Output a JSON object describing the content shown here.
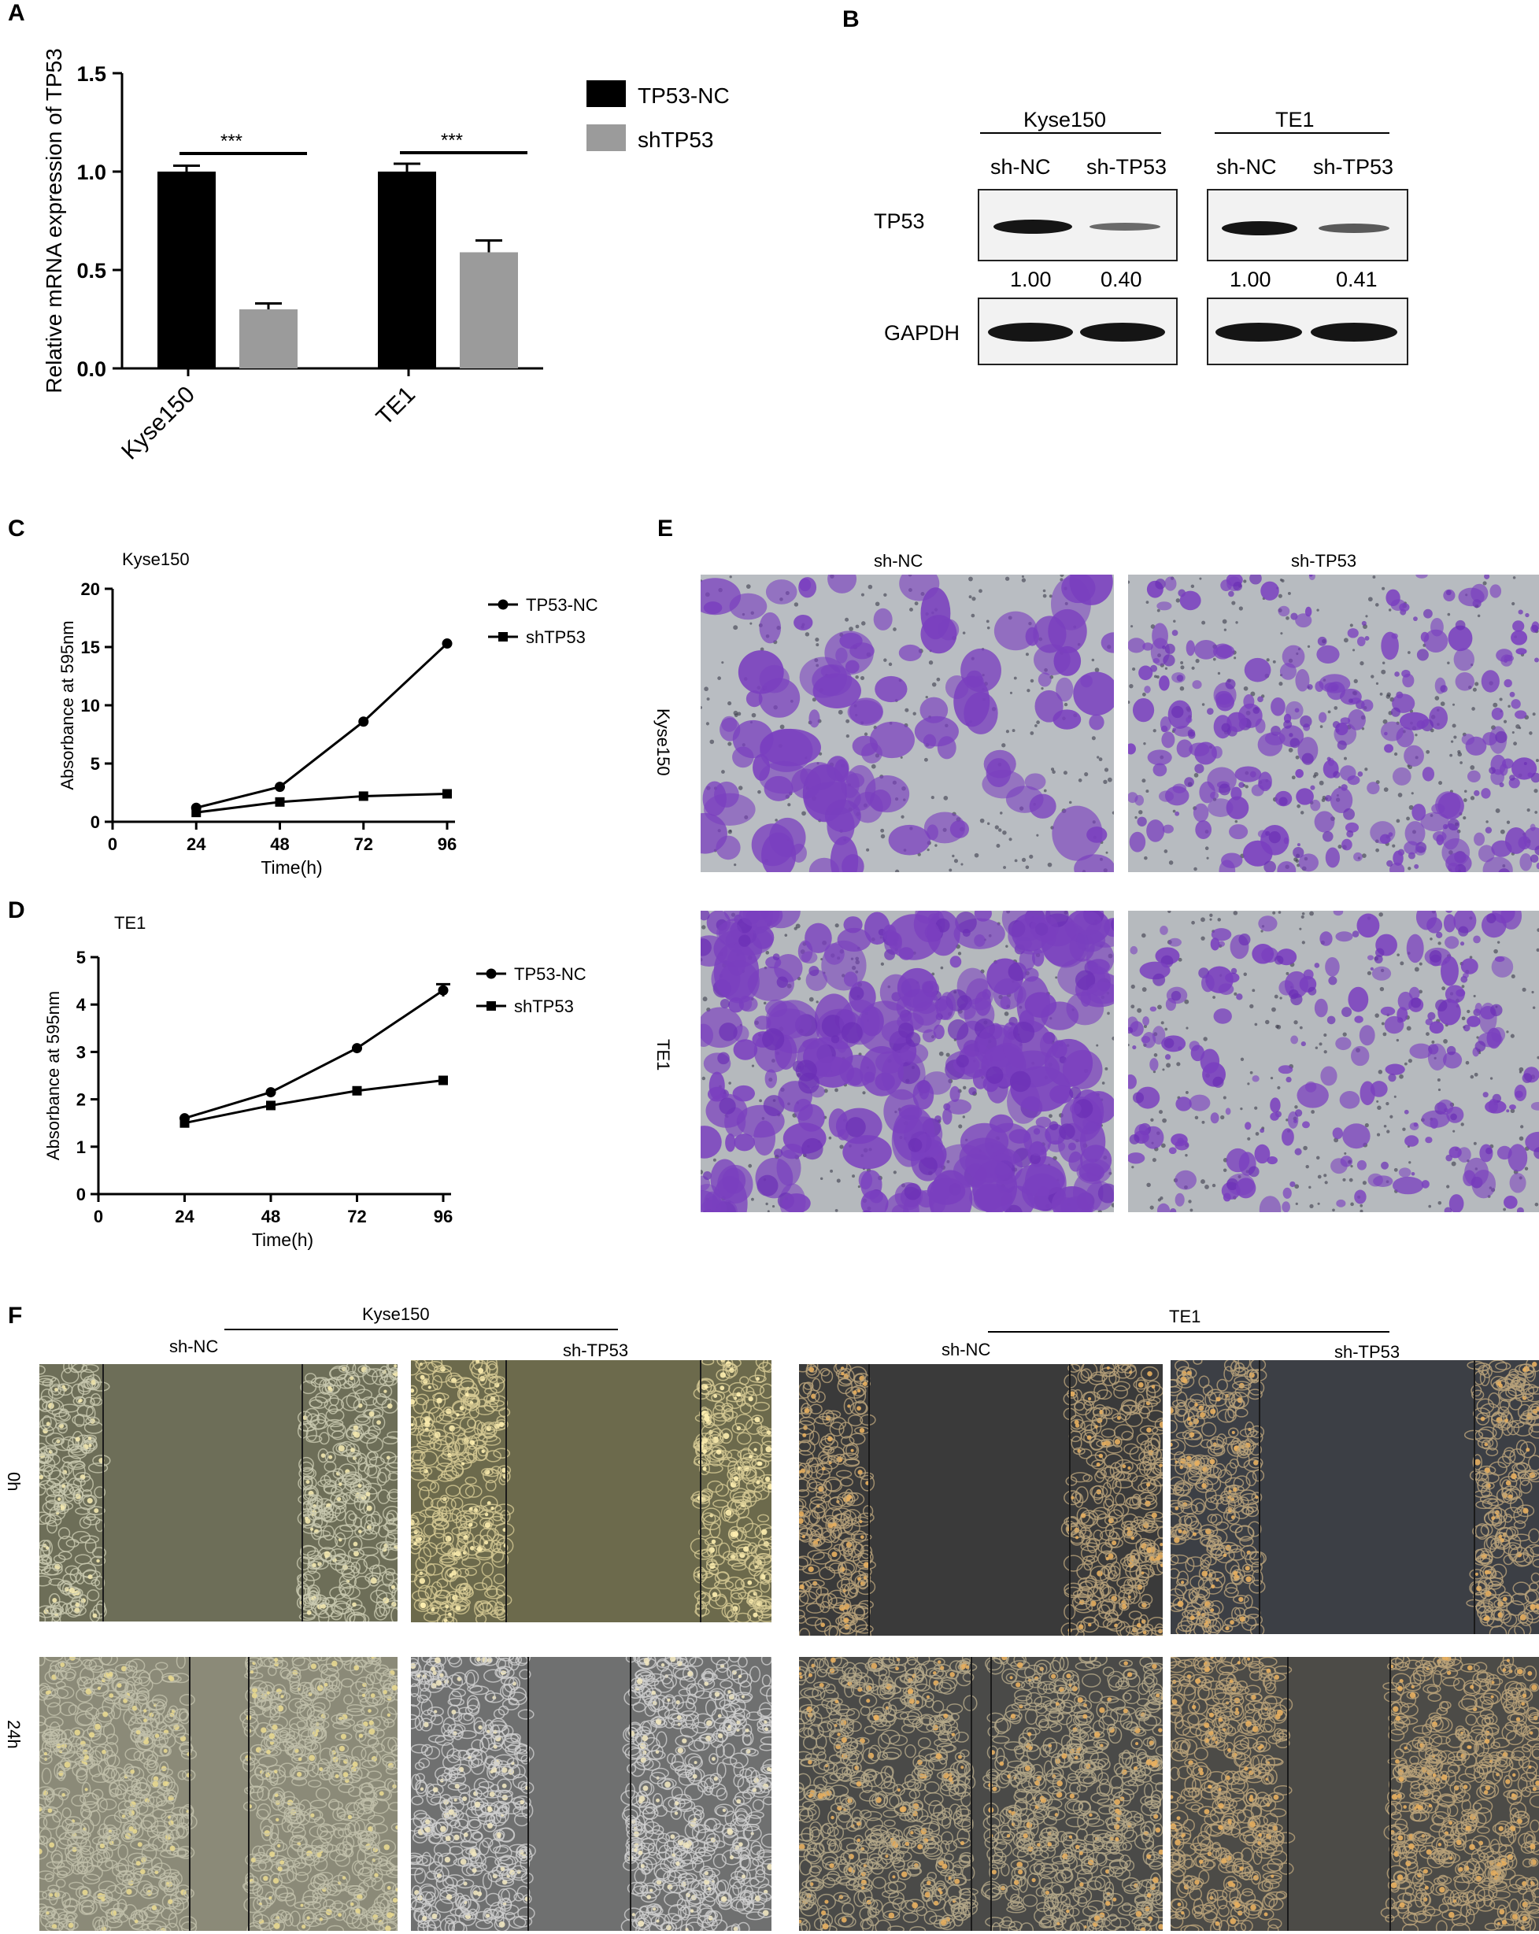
{
  "panel_labels": {
    "A": "A",
    "B": "B",
    "C": "C",
    "D": "D",
    "E": "E",
    "F": "F"
  },
  "colors": {
    "tp53_nc": "#000000",
    "shtp53": "#9b9b9b",
    "crystal_violet": "#7a3fbf",
    "membrane": "#b8bcc0"
  },
  "chart_data": [
    {
      "panel": "A",
      "type": "bar",
      "categories": [
        "Kyse150",
        "TE1"
      ],
      "series": [
        {
          "name": "TP53-NC",
          "values": [
            1.0,
            1.0
          ],
          "errors": [
            0.03,
            0.04
          ]
        },
        {
          "name": "shTP53",
          "values": [
            0.3,
            0.59
          ],
          "errors": [
            0.03,
            0.06
          ]
        }
      ],
      "significance": [
        "***",
        "***"
      ],
      "ylabel": "Relative mRNA expression of TP53",
      "ylim": [
        0,
        1.5
      ],
      "yticks": [
        "0.0",
        "0.5",
        "1.0",
        "1.5"
      ],
      "legend": "top-right"
    },
    {
      "panel": "C",
      "type": "line",
      "title": "Kyse150",
      "x": [
        24,
        48,
        72,
        96
      ],
      "series": [
        {
          "name": "TP53-NC",
          "marker": "circle",
          "values": [
            1.2,
            3.0,
            8.6,
            15.3
          ]
        },
        {
          "name": "shTP53",
          "marker": "square",
          "values": [
            0.8,
            1.7,
            2.2,
            2.4
          ]
        }
      ],
      "xlabel": "Time(h)",
      "ylabel": "Absorbance at 595nm",
      "xlim": [
        0,
        96
      ],
      "ylim": [
        0,
        20
      ],
      "xticks": [
        "0",
        "24",
        "48",
        "72",
        "96"
      ],
      "yticks": [
        "0",
        "5",
        "10",
        "15",
        "20"
      ],
      "legend": "right"
    },
    {
      "panel": "D",
      "type": "line",
      "title": "TE1",
      "x": [
        24,
        48,
        72,
        96
      ],
      "series": [
        {
          "name": "TP53-NC",
          "marker": "circle",
          "values": [
            1.6,
            2.15,
            3.08,
            4.3
          ],
          "errors": [
            0,
            0,
            0,
            0.13
          ]
        },
        {
          "name": "shTP53",
          "marker": "square",
          "values": [
            1.5,
            1.87,
            2.18,
            2.4
          ]
        }
      ],
      "xlabel": "Time(h)",
      "ylabel": "Absorbance at 595nm",
      "xlim": [
        0,
        96
      ],
      "ylim": [
        0,
        5
      ],
      "xticks": [
        "0",
        "24",
        "48",
        "72",
        "96"
      ],
      "yticks": [
        "0",
        "1",
        "2",
        "3",
        "4",
        "5"
      ],
      "legend": "right"
    }
  ],
  "western": {
    "groups": [
      {
        "name": "Kyse150",
        "lanes": [
          "sh-NC",
          "sh-TP53"
        ],
        "tp53_quant": [
          "1.00",
          "0.40"
        ]
      },
      {
        "name": "TE1",
        "lanes": [
          "sh-NC",
          "sh-TP53"
        ],
        "tp53_quant": [
          "1.00",
          "0.41"
        ]
      }
    ],
    "rows": [
      "TP53",
      "GAPDH"
    ]
  },
  "transwell": {
    "columns": [
      "sh-NC",
      "sh-TP53"
    ],
    "rows": [
      "Kyse150",
      "TE1"
    ]
  },
  "wound": {
    "groups": [
      {
        "name": "Kyse150",
        "lanes": [
          "sh-NC",
          "sh-TP53"
        ]
      },
      {
        "name": "TE1",
        "lanes": [
          "sh-NC",
          "sh-TP53"
        ]
      }
    ],
    "timepoints": [
      "0h",
      "24h"
    ]
  }
}
